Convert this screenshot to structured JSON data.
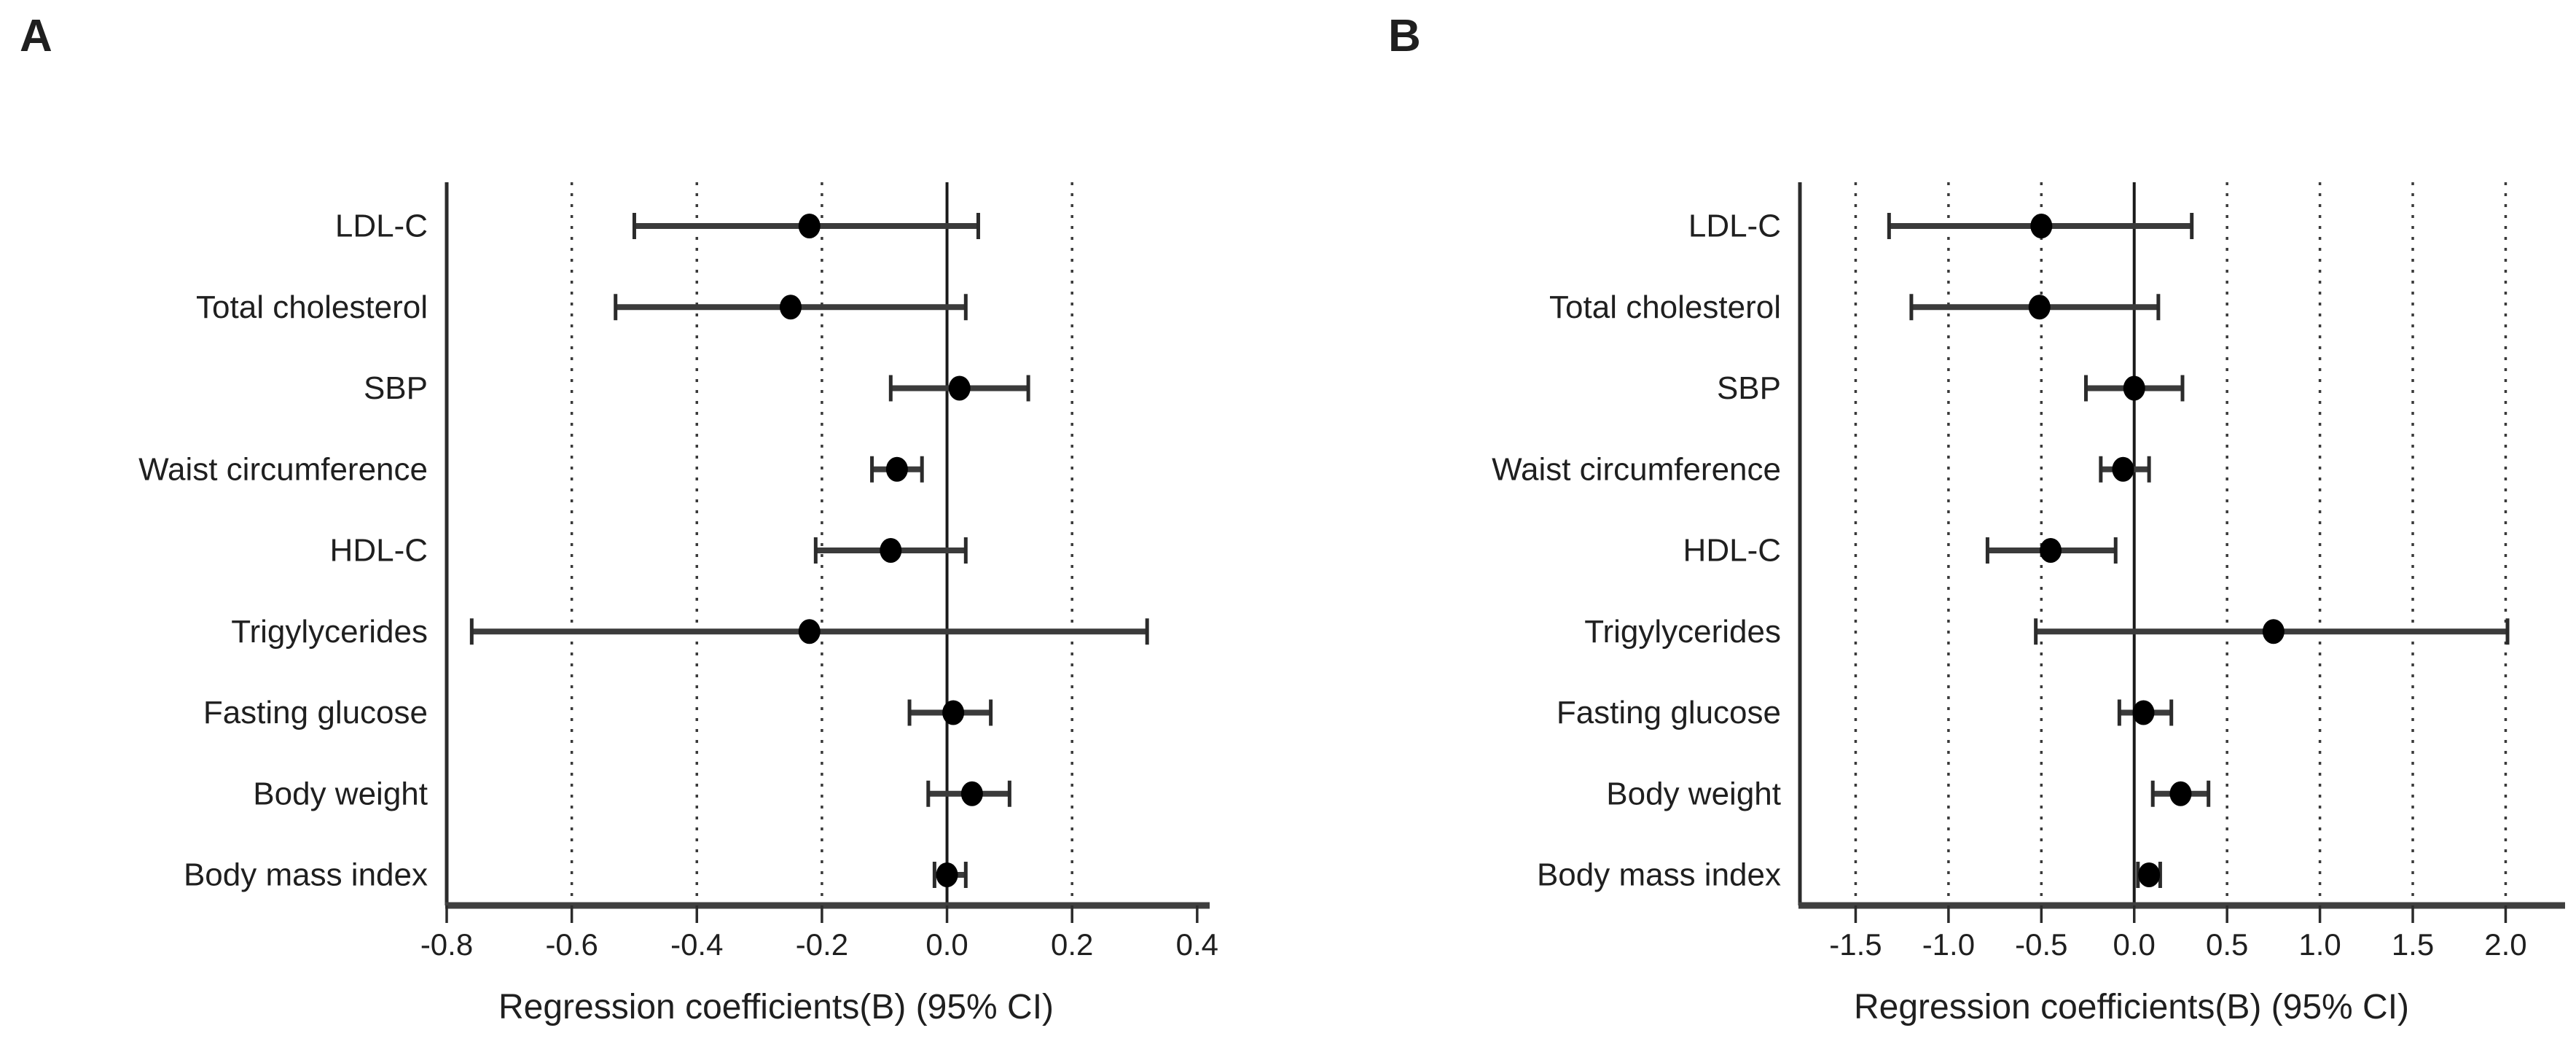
{
  "figure": {
    "background": "#ffffff",
    "text_color": "#1f1f1f",
    "axis_color": "#2b2b2b",
    "baseline_color": "#3f3f3f",
    "grid_color": "#3a3a3a",
    "errorbar_color": "#3b3b3b",
    "marker_color": "#000000"
  },
  "chart_data": [
    {
      "type": "forest",
      "panel_label": "A",
      "xlabel": "Regression coefficients(B) (95% CI)",
      "xlim": [
        -0.8,
        0.42
      ],
      "xticks": [
        -0.8,
        -0.6,
        -0.4,
        -0.2,
        0.0,
        0.2,
        0.4
      ],
      "tick_decimals": 1,
      "dotted_gridlines": [
        -0.6,
        -0.4,
        -0.2,
        0.2
      ],
      "zero_line": 0.0,
      "grid": "dotted-vertical",
      "legend": "none",
      "rows": [
        {
          "label": "LDL-C",
          "estimate": -0.22,
          "ci_low": -0.5,
          "ci_high": 0.05
        },
        {
          "label": "Total cholesterol",
          "estimate": -0.25,
          "ci_low": -0.53,
          "ci_high": 0.03
        },
        {
          "label": "SBP",
          "estimate": 0.02,
          "ci_low": -0.09,
          "ci_high": 0.13
        },
        {
          "label": "Waist circumference",
          "estimate": -0.08,
          "ci_low": -0.12,
          "ci_high": -0.04
        },
        {
          "label": "HDL-C",
          "estimate": -0.09,
          "ci_low": -0.21,
          "ci_high": 0.03
        },
        {
          "label": "Trigylycerides",
          "estimate": -0.22,
          "ci_low": -0.76,
          "ci_high": 0.32
        },
        {
          "label": "Fasting glucose",
          "estimate": 0.01,
          "ci_low": -0.06,
          "ci_high": 0.07
        },
        {
          "label": "Body weight",
          "estimate": 0.04,
          "ci_low": -0.03,
          "ci_high": 0.1
        },
        {
          "label": "Body mass index",
          "estimate": 0.0,
          "ci_low": -0.02,
          "ci_high": 0.03
        }
      ]
    },
    {
      "type": "forest",
      "panel_label": "B",
      "xlabel": "Regression coefficients(B) (95% CI)",
      "xlim": [
        -1.8,
        2.32
      ],
      "xticks": [
        -1.5,
        -1.0,
        -0.5,
        0.0,
        0.5,
        1.0,
        1.5,
        2.0
      ],
      "tick_decimals": 1,
      "dotted_gridlines": [
        -1.5,
        -1.0,
        -0.5,
        0.5,
        1.0,
        1.5,
        2.0
      ],
      "zero_line": 0.0,
      "grid": "dotted-vertical",
      "legend": "none",
      "rows": [
        {
          "label": "LDL-C",
          "estimate": -0.5,
          "ci_low": -1.32,
          "ci_high": 0.31
        },
        {
          "label": "Total cholesterol",
          "estimate": -0.51,
          "ci_low": -1.2,
          "ci_high": 0.13
        },
        {
          "label": "SBP",
          "estimate": 0.0,
          "ci_low": -0.26,
          "ci_high": 0.26
        },
        {
          "label": "Waist circumference",
          "estimate": -0.06,
          "ci_low": -0.18,
          "ci_high": 0.08
        },
        {
          "label": "HDL-C",
          "estimate": -0.45,
          "ci_low": -0.79,
          "ci_high": -0.1
        },
        {
          "label": "Trigylycerides",
          "estimate": 0.75,
          "ci_low": -0.53,
          "ci_high": 2.01
        },
        {
          "label": "Fasting glucose",
          "estimate": 0.05,
          "ci_low": -0.08,
          "ci_high": 0.2
        },
        {
          "label": "Body weight",
          "estimate": 0.25,
          "ci_low": 0.1,
          "ci_high": 0.4
        },
        {
          "label": "Body mass index",
          "estimate": 0.08,
          "ci_low": 0.02,
          "ci_high": 0.14
        }
      ]
    }
  ]
}
